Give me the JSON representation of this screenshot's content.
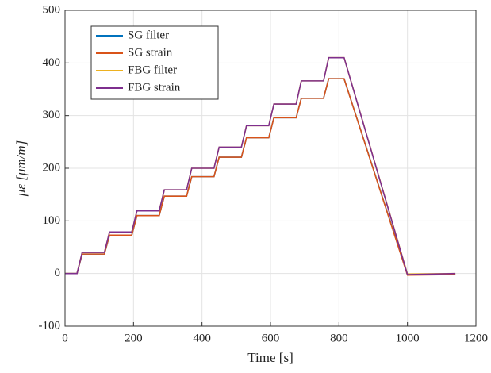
{
  "chart_data": {
    "type": "line",
    "xlabel": "Time [s]",
    "ylabel": "με [μm/m]",
    "x": [
      0,
      35,
      50,
      115,
      130,
      195,
      210,
      275,
      290,
      355,
      370,
      435,
      450,
      515,
      530,
      595,
      610,
      675,
      690,
      755,
      770,
      815,
      1000,
      1140
    ],
    "series": [
      {
        "name": "SG filter",
        "color": "#0072BD",
        "values": [
          0,
          0,
          37,
          37,
          73,
          73,
          110,
          110,
          147,
          147,
          184,
          184,
          221,
          221,
          258,
          258,
          296,
          296,
          333,
          333,
          370,
          370,
          -2,
          -2
        ]
      },
      {
        "name": "SG strain",
        "color": "#D95319",
        "values": [
          0,
          0,
          37,
          37,
          73,
          73,
          110,
          110,
          147,
          147,
          184,
          184,
          221,
          221,
          258,
          258,
          296,
          296,
          333,
          333,
          370,
          370,
          -3,
          -2
        ]
      },
      {
        "name": "FBG filter",
        "color": "#EDB120",
        "values": [
          0,
          0,
          40,
          40,
          79,
          79,
          119,
          119,
          159,
          159,
          200,
          200,
          240,
          240,
          281,
          281,
          322,
          322,
          366,
          366,
          410,
          410,
          -1,
          0
        ]
      },
      {
        "name": "FBG strain",
        "color": "#7E2F8E",
        "values": [
          0,
          0,
          40,
          40,
          79,
          79,
          119,
          119,
          159,
          159,
          200,
          200,
          240,
          240,
          281,
          281,
          322,
          322,
          366,
          366,
          410,
          410,
          -2,
          0
        ]
      }
    ],
    "xlim": [
      0,
      1200
    ],
    "xticks": [
      0,
      200,
      400,
      600,
      800,
      1000,
      1200
    ],
    "ylim": [
      -100,
      500
    ],
    "yticks": [
      -100,
      0,
      100,
      200,
      300,
      400,
      500
    ],
    "grid": true,
    "legend": "upper left"
  }
}
